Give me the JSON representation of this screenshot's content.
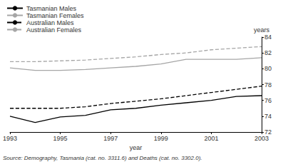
{
  "chart_data": {
    "type": "line",
    "x_label": "year",
    "y_label": "years",
    "annotations": [
      "Source: Demography, Tasmania (cat. no. 3311.6) and Deaths (cat. no. 3302.0)."
    ],
    "x": [
      1993,
      1994,
      1995,
      1996,
      1997,
      1998,
      1999,
      2000,
      2001,
      2002,
      2003
    ],
    "series": [
      {
        "name": "Tasmanian Males",
        "color": "#000000",
        "line_style": "solid",
        "values": [
          74.0,
          73.2,
          73.9,
          74.1,
          74.8,
          75.0,
          75.4,
          75.7,
          76.0,
          76.5,
          76.6
        ]
      },
      {
        "name": "Tasmanian Females",
        "color": "#a6a6a6",
        "line_style": "solid",
        "values": [
          80.1,
          79.8,
          79.8,
          79.9,
          80.1,
          80.3,
          80.6,
          81.2,
          81.2,
          81.2,
          81.4
        ]
      },
      {
        "name": "Australian Males",
        "color": "#000000",
        "line_style": "dashed",
        "values": [
          75.0,
          75.0,
          75.0,
          75.2,
          75.6,
          75.9,
          76.2,
          76.6,
          77.0,
          77.4,
          77.8
        ]
      },
      {
        "name": "Australian Females",
        "color": "#a6a6a6",
        "line_style": "dashed",
        "values": [
          80.9,
          80.9,
          81.0,
          81.1,
          81.3,
          81.5,
          81.8,
          82.0,
          82.4,
          82.6,
          82.8
        ]
      }
    ],
    "xlim": [
      1993,
      2003
    ],
    "xticks": [
      1993,
      1995,
      1997,
      1999,
      2001,
      2003
    ],
    "ylim": [
      72,
      84
    ],
    "yticks": [
      72,
      74,
      76,
      78,
      80,
      82,
      84
    ],
    "grid": false,
    "legend": "upper left"
  }
}
